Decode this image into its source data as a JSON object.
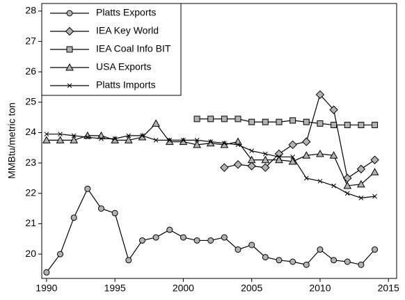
{
  "chart_data": {
    "type": "line",
    "y_label": "MMBtu/metric ton",
    "x": [
      1990,
      1991,
      1992,
      1993,
      1994,
      1995,
      1996,
      1997,
      1998,
      1999,
      2000,
      2001,
      2002,
      2003,
      2004,
      2005,
      2006,
      2007,
      2008,
      2009,
      2010,
      2011,
      2012,
      2013,
      2014
    ],
    "xlim": [
      1989.65,
      2015.6
    ],
    "xticks": [
      1990,
      1995,
      2000,
      2005,
      2010,
      2015
    ],
    "ylim": [
      19.2,
      28.25
    ],
    "yticks": [
      20,
      21,
      22,
      23,
      24,
      25,
      26,
      27,
      28
    ],
    "grid": false,
    "legend": "top-left",
    "series": [
      {
        "name": "Platts Exports",
        "color": "#000000",
        "marker": "circle",
        "marker_color": "#b3b3b3",
        "values": [
          19.4,
          20.0,
          21.2,
          22.15,
          21.5,
          21.35,
          19.8,
          20.45,
          20.55,
          20.8,
          20.55,
          20.45,
          20.45,
          20.55,
          20.15,
          20.3,
          19.9,
          19.8,
          19.75,
          19.65,
          20.15,
          19.8,
          19.75,
          19.65,
          20.15
        ]
      },
      {
        "name": "IEA Key World",
        "color": "#000000",
        "marker": "diamond",
        "marker_color": "#b3b3b3",
        "values": [
          null,
          null,
          null,
          null,
          null,
          null,
          null,
          null,
          null,
          null,
          null,
          null,
          null,
          22.85,
          22.95,
          22.9,
          22.85,
          23.3,
          23.6,
          23.7,
          25.25,
          24.75,
          22.5,
          22.8,
          23.1
        ]
      },
      {
        "name": "IEA Coal Info BIT",
        "color": "#000000",
        "marker": "square",
        "marker_color": "#b3b3b3",
        "values": [
          null,
          null,
          null,
          null,
          null,
          null,
          null,
          null,
          null,
          null,
          null,
          24.45,
          24.45,
          24.45,
          24.45,
          24.35,
          24.35,
          24.35,
          24.4,
          24.35,
          24.3,
          24.25,
          24.25,
          24.25,
          24.25
        ]
      },
      {
        "name": "USA Exports",
        "color": "#000000",
        "marker": "triangle",
        "marker_color": "#b3b3b3",
        "values": [
          23.75,
          23.75,
          23.75,
          23.9,
          23.9,
          23.75,
          23.75,
          23.85,
          24.3,
          23.7,
          23.7,
          23.6,
          23.65,
          23.6,
          23.7,
          23.1,
          23.1,
          23.1,
          23.05,
          23.25,
          23.3,
          23.25,
          22.25,
          22.3,
          22.7
        ]
      },
      {
        "name": "Platts Imports",
        "color": "#000000",
        "marker": "x",
        "marker_color": "#000000",
        "values": [
          23.95,
          23.95,
          23.9,
          23.85,
          23.8,
          23.8,
          23.9,
          23.9,
          23.75,
          23.75,
          23.75,
          23.75,
          23.7,
          23.65,
          23.6,
          23.4,
          23.3,
          23.2,
          23.2,
          22.5,
          22.4,
          22.25,
          22.0,
          21.85,
          21.9
        ]
      }
    ]
  }
}
